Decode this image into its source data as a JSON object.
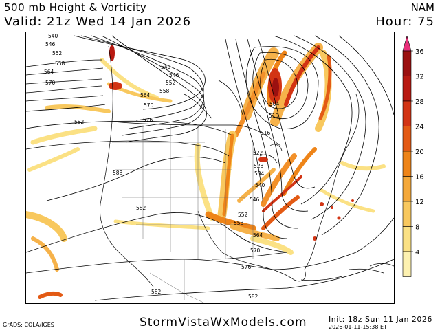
{
  "header": {
    "title": "500 mb Height & Vorticity",
    "valid": "Valid: 21z Wed 14 Jan 2026",
    "model": "NAM",
    "hour": "Hour: 75"
  },
  "colorbar": {
    "ticks": [
      "36",
      "32",
      "28",
      "24",
      "20",
      "16",
      "12",
      "8",
      "4"
    ],
    "colors": [
      "#e8307a",
      "#9b1010",
      "#b81a12",
      "#d23414",
      "#e35a14",
      "#ee8418",
      "#f4a83a",
      "#f8c85e",
      "#fbe184",
      "#fdf1b0"
    ]
  },
  "contour_labels": [
    "540",
    "546",
    "552",
    "558",
    "564",
    "570",
    "540",
    "546",
    "552",
    "558",
    "564",
    "570",
    "576",
    "582",
    "588",
    "582",
    "504",
    "510",
    "516",
    "522",
    "528",
    "534",
    "540",
    "546",
    "552",
    "558",
    "564",
    "570",
    "576",
    "582",
    "582"
  ],
  "footer": {
    "site": "StormVistaWxModels.com",
    "credit": "GrADS: COLA/IGES",
    "init": "Init: 18z Sun 11 Jan 2026",
    "stamp": "2026-01-11-15:38 ET"
  }
}
